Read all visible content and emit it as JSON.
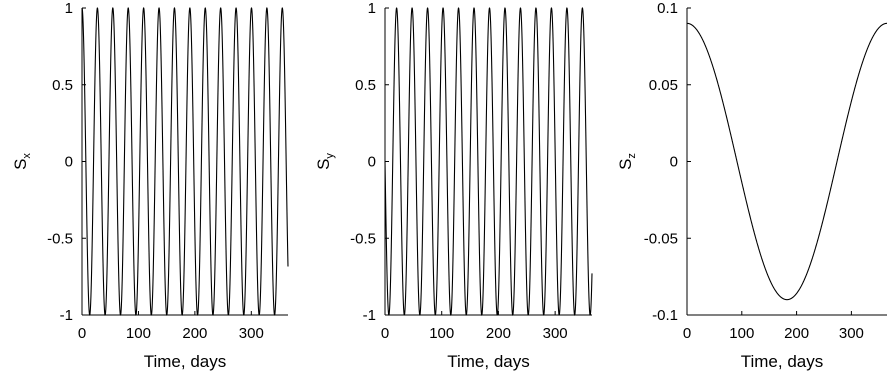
{
  "chart_data": [
    {
      "type": "line",
      "title": "",
      "xlabel": "Time, days",
      "ylabel": "S",
      "ylabel_sub": "x",
      "xlim": [
        0,
        365
      ],
      "ylim": [
        -1,
        1
      ],
      "xticks": [
        0,
        100,
        200,
        300
      ],
      "yticks": [
        -1,
        -0.5,
        0,
        0.5,
        1
      ],
      "xtick_labels": [
        "0",
        "100",
        "200",
        "300"
      ],
      "ytick_labels": [
        "-1",
        "-0.5",
        "0",
        "0.5",
        "1"
      ],
      "grid": false,
      "legend": "none",
      "line_color": "#000000",
      "series": [
        {
          "function": "cos(2*pi*t/27.3)",
          "period_days": 27.3,
          "amplitude": 1,
          "phase_deg": 0,
          "x_start": 0,
          "x_end": 365
        }
      ]
    },
    {
      "type": "line",
      "title": "",
      "xlabel": "Time, days",
      "ylabel": "S",
      "ylabel_sub": "y",
      "xlim": [
        0,
        365
      ],
      "ylim": [
        -1,
        1
      ],
      "xticks": [
        0,
        100,
        200,
        300
      ],
      "yticks": [
        -1,
        -0.5,
        0,
        0.5,
        1
      ],
      "xtick_labels": [
        "0",
        "100",
        "200",
        "300"
      ],
      "ytick_labels": [
        "-1",
        "-0.5",
        "0",
        "0.5",
        "1"
      ],
      "grid": false,
      "legend": "none",
      "line_color": "#000000",
      "series": [
        {
          "function": "-sin(2*pi*t/27.3)",
          "period_days": 27.3,
          "amplitude": 1,
          "phase_deg": -90,
          "x_start": 0,
          "x_end": 365
        }
      ]
    },
    {
      "type": "line",
      "title": "",
      "xlabel": "Time, days",
      "ylabel": "S",
      "ylabel_sub": "z",
      "xlim": [
        0,
        365
      ],
      "ylim": [
        -0.1,
        0.1
      ],
      "xticks": [
        0,
        100,
        200,
        300
      ],
      "yticks": [
        -0.1,
        -0.05,
        0,
        0.05,
        0.1
      ],
      "xtick_labels": [
        "0",
        "100",
        "200",
        "300"
      ],
      "ytick_labels": [
        "-0.1",
        "-0.05",
        "0",
        "0.05",
        "0.1"
      ],
      "grid": false,
      "legend": "none",
      "line_color": "#000000",
      "series": [
        {
          "function": "0.09*cos(2*pi*t/365)",
          "period_days": 365,
          "amplitude": 0.09,
          "phase_deg": 0,
          "x_start": 0,
          "x_end": 365
        }
      ]
    }
  ]
}
